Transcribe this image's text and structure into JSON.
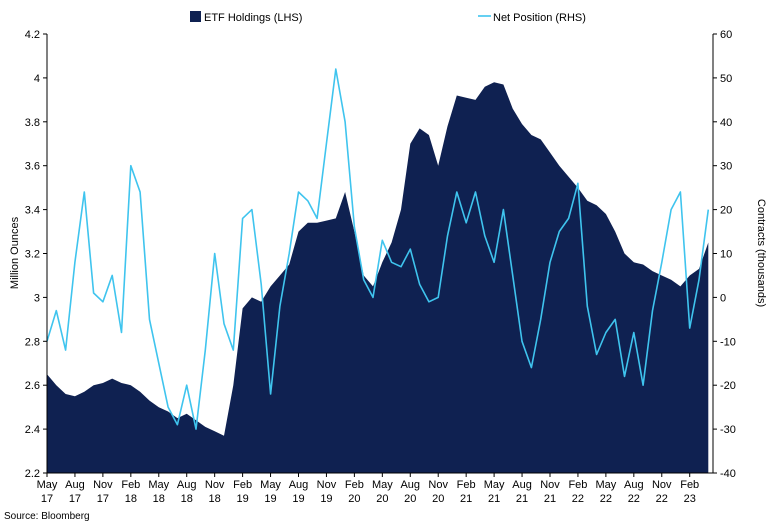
{
  "source": "Source: Bloomberg",
  "colors": {
    "etf": "#0f2151",
    "net": "#3fc4ee",
    "axis": "#000000"
  },
  "chart_data": {
    "type": "area",
    "title": "",
    "ylabel_left": "Million Ounces",
    "ylabel_right": "Contracts (thousands)",
    "ylim_left": [
      2.2,
      4.2
    ],
    "ylim_right": [
      -40,
      60
    ],
    "yticks_left": [
      "2.2",
      "2.4",
      "2.6",
      "2.8",
      "3",
      "3.2",
      "3.4",
      "3.6",
      "3.8",
      "4",
      "4.2"
    ],
    "yticks_right": [
      "-40",
      "-30",
      "-20",
      "-10",
      "0",
      "10",
      "20",
      "30",
      "40",
      "50",
      "60"
    ],
    "x_start": "May 17",
    "x_end": "Apr 23",
    "xticks": [
      {
        "month": "May",
        "year": "17"
      },
      {
        "month": "Aug",
        "year": "17"
      },
      {
        "month": "Nov",
        "year": "17"
      },
      {
        "month": "Feb",
        "year": "18"
      },
      {
        "month": "May",
        "year": "18"
      },
      {
        "month": "Aug",
        "year": "18"
      },
      {
        "month": "Nov",
        "year": "18"
      },
      {
        "month": "Feb",
        "year": "19"
      },
      {
        "month": "May",
        "year": "19"
      },
      {
        "month": "Aug",
        "year": "19"
      },
      {
        "month": "Nov",
        "year": "19"
      },
      {
        "month": "Feb",
        "year": "20"
      },
      {
        "month": "May",
        "year": "20"
      },
      {
        "month": "Aug",
        "year": "20"
      },
      {
        "month": "Nov",
        "year": "20"
      },
      {
        "month": "Feb",
        "year": "21"
      },
      {
        "month": "May",
        "year": "21"
      },
      {
        "month": "Aug",
        "year": "21"
      },
      {
        "month": "Nov",
        "year": "21"
      },
      {
        "month": "Feb",
        "year": "22"
      },
      {
        "month": "May",
        "year": "22"
      },
      {
        "month": "Aug",
        "year": "22"
      },
      {
        "month": "Nov",
        "year": "22"
      },
      {
        "month": "Feb",
        "year": "23"
      }
    ],
    "legend_position": "top",
    "grid": false,
    "series": [
      {
        "name": "ETF Holdings (LHS)",
        "type": "area",
        "axis": "left",
        "points": [
          [
            "May 17",
            2.65
          ],
          [
            "Jun 17",
            2.6
          ],
          [
            "Jul 17",
            2.56
          ],
          [
            "Aug 17",
            2.55
          ],
          [
            "Sep 17",
            2.57
          ],
          [
            "Oct 17",
            2.6
          ],
          [
            "Nov 17",
            2.61
          ],
          [
            "Dec 17",
            2.63
          ],
          [
            "Jan 18",
            2.61
          ],
          [
            "Feb 18",
            2.6
          ],
          [
            "Mar 18",
            2.57
          ],
          [
            "Apr 18",
            2.53
          ],
          [
            "May 18",
            2.5
          ],
          [
            "Jun 18",
            2.48
          ],
          [
            "Jul 18",
            2.45
          ],
          [
            "Aug 18",
            2.47
          ],
          [
            "Sep 18",
            2.44
          ],
          [
            "Oct 18",
            2.41
          ],
          [
            "Nov 18",
            2.39
          ],
          [
            "Dec 18",
            2.37
          ],
          [
            "Jan 19",
            2.6
          ],
          [
            "Feb 19",
            2.95
          ],
          [
            "Mar 19",
            3.0
          ],
          [
            "Apr 19",
            2.98
          ],
          [
            "May 19",
            3.05
          ],
          [
            "Jun 19",
            3.1
          ],
          [
            "Jul 19",
            3.15
          ],
          [
            "Aug 19",
            3.3
          ],
          [
            "Sep 19",
            3.34
          ],
          [
            "Oct 19",
            3.34
          ],
          [
            "Nov 19",
            3.35
          ],
          [
            "Dec 19",
            3.36
          ],
          [
            "Jan 20",
            3.48
          ],
          [
            "Feb 20",
            3.3
          ],
          [
            "Mar 20",
            3.1
          ],
          [
            "Apr 20",
            3.05
          ],
          [
            "May 20",
            3.16
          ],
          [
            "Jun 20",
            3.25
          ],
          [
            "Jul 20",
            3.4
          ],
          [
            "Aug 20",
            3.7
          ],
          [
            "Sep 20",
            3.77
          ],
          [
            "Oct 20",
            3.74
          ],
          [
            "Nov 20",
            3.6
          ],
          [
            "Dec 20",
            3.78
          ],
          [
            "Jan 21",
            3.92
          ],
          [
            "Feb 21",
            3.91
          ],
          [
            "Mar 21",
            3.9
          ],
          [
            "Apr 21",
            3.96
          ],
          [
            "May 21",
            3.98
          ],
          [
            "Jun 21",
            3.97
          ],
          [
            "Jul 21",
            3.86
          ],
          [
            "Aug 21",
            3.79
          ],
          [
            "Sep 21",
            3.74
          ],
          [
            "Oct 21",
            3.72
          ],
          [
            "Nov 21",
            3.66
          ],
          [
            "Dec 21",
            3.6
          ],
          [
            "Jan 22",
            3.55
          ],
          [
            "Feb 22",
            3.5
          ],
          [
            "Mar 22",
            3.44
          ],
          [
            "Apr 22",
            3.42
          ],
          [
            "May 22",
            3.38
          ],
          [
            "Jun 22",
            3.3
          ],
          [
            "Jul 22",
            3.2
          ],
          [
            "Aug 22",
            3.16
          ],
          [
            "Sep 22",
            3.15
          ],
          [
            "Oct 22",
            3.12
          ],
          [
            "Nov 22",
            3.1
          ],
          [
            "Dec 22",
            3.08
          ],
          [
            "Jan 23",
            3.05
          ],
          [
            "Feb 23",
            3.1
          ],
          [
            "Mar 23",
            3.13
          ],
          [
            "Apr 23",
            3.25
          ]
        ]
      },
      {
        "name": "Net Position (RHS)",
        "type": "line",
        "axis": "right",
        "points": [
          [
            "May 17",
            -10
          ],
          [
            "Jun 17",
            -3
          ],
          [
            "Jul 17",
            -12
          ],
          [
            "Aug 17",
            8
          ],
          [
            "Sep 17",
            24
          ],
          [
            "Oct 17",
            1
          ],
          [
            "Nov 17",
            -1
          ],
          [
            "Dec 17",
            5
          ],
          [
            "Jan 18",
            -8
          ],
          [
            "Feb 18",
            30
          ],
          [
            "Mar 18",
            24
          ],
          [
            "Apr 18",
            -5
          ],
          [
            "May 18",
            -15
          ],
          [
            "Jun 18",
            -25
          ],
          [
            "Jul 18",
            -29
          ],
          [
            "Aug 18",
            -20
          ],
          [
            "Sep 18",
            -30
          ],
          [
            "Oct 18",
            -12
          ],
          [
            "Nov 18",
            10
          ],
          [
            "Dec 18",
            -6
          ],
          [
            "Jan 19",
            -12
          ],
          [
            "Feb 19",
            18
          ],
          [
            "Mar 19",
            20
          ],
          [
            "Apr 19",
            3
          ],
          [
            "May 19",
            -22
          ],
          [
            "Jun 19",
            -2
          ],
          [
            "Jul 19",
            10
          ],
          [
            "Aug 19",
            24
          ],
          [
            "Sep 19",
            22
          ],
          [
            "Oct 19",
            18
          ],
          [
            "Nov 19",
            35
          ],
          [
            "Dec 19",
            52
          ],
          [
            "Jan 20",
            40
          ],
          [
            "Feb 20",
            16
          ],
          [
            "Mar 20",
            4
          ],
          [
            "Apr 20",
            0
          ],
          [
            "May 20",
            13
          ],
          [
            "Jun 20",
            8
          ],
          [
            "Jul 20",
            7
          ],
          [
            "Aug 20",
            11
          ],
          [
            "Sep 20",
            3
          ],
          [
            "Oct 20",
            -1
          ],
          [
            "Nov 20",
            0
          ],
          [
            "Dec 20",
            14
          ],
          [
            "Jan 21",
            24
          ],
          [
            "Feb 21",
            17
          ],
          [
            "Mar 21",
            24
          ],
          [
            "Apr 21",
            14
          ],
          [
            "May 21",
            8
          ],
          [
            "Jun 21",
            20
          ],
          [
            "Jul 21",
            5
          ],
          [
            "Aug 21",
            -10
          ],
          [
            "Sep 21",
            -16
          ],
          [
            "Oct 21",
            -5
          ],
          [
            "Nov 21",
            8
          ],
          [
            "Dec 21",
            15
          ],
          [
            "Jan 22",
            18
          ],
          [
            "Feb 22",
            26
          ],
          [
            "Mar 22",
            -2
          ],
          [
            "Apr 22",
            -13
          ],
          [
            "May 22",
            -8
          ],
          [
            "Jun 22",
            -5
          ],
          [
            "Jul 22",
            -18
          ],
          [
            "Aug 22",
            -8
          ],
          [
            "Sep 22",
            -20
          ],
          [
            "Oct 22",
            -3
          ],
          [
            "Nov 22",
            8
          ],
          [
            "Dec 22",
            20
          ],
          [
            "Jan 23",
            24
          ],
          [
            "Feb 23",
            -7
          ],
          [
            "Mar 23",
            4
          ],
          [
            "Apr 23",
            20
          ]
        ]
      }
    ]
  }
}
